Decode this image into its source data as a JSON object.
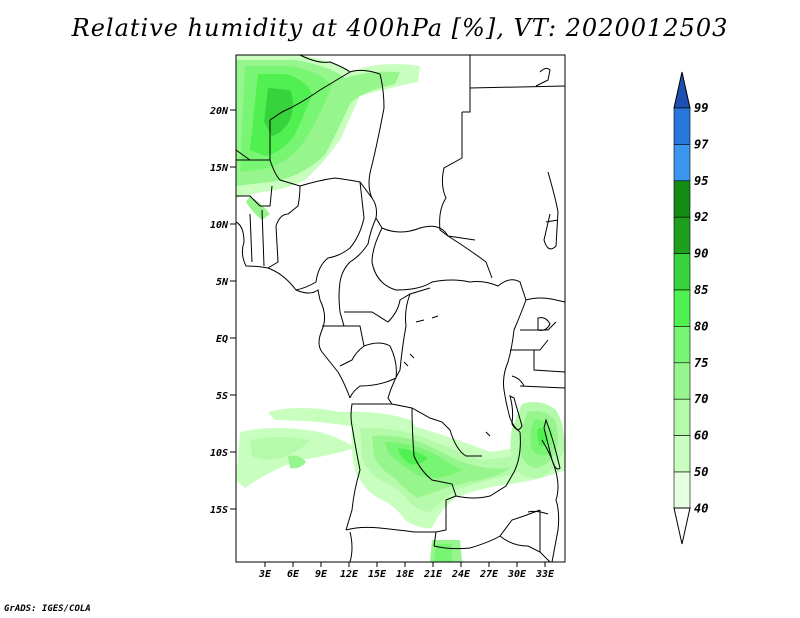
{
  "title": "Relative humidity at 400hPa [%], VT: 2020012503",
  "credit": "GrADS: IGES/COLA",
  "map": {
    "lat_ticks": [
      "20N",
      "15N",
      "10N",
      "5N",
      "EQ",
      "5S",
      "10S",
      "15S"
    ],
    "lon_ticks": [
      "3E",
      "6E",
      "9E",
      "12E",
      "15E",
      "18E",
      "21E",
      "24E",
      "27E",
      "30E",
      "33E"
    ],
    "field": "relative humidity",
    "level": "400hPa",
    "units": "%"
  },
  "colorbar": {
    "levels": [
      "99",
      "97",
      "95",
      "92",
      "90",
      "85",
      "80",
      "75",
      "70",
      "60",
      "50",
      "40"
    ],
    "colors": [
      "#1e64d2",
      "#2878dc",
      "#3c96f0",
      "#148c14",
      "#1ea01e",
      "#37d23c",
      "#50f050",
      "#78f573",
      "#96f58c",
      "#b4faaa",
      "#c8ffbe",
      "#e6ffe1"
    ],
    "top_arrow_color": "#1e50b4",
    "bottom_arrow_color": "#ffffff"
  }
}
